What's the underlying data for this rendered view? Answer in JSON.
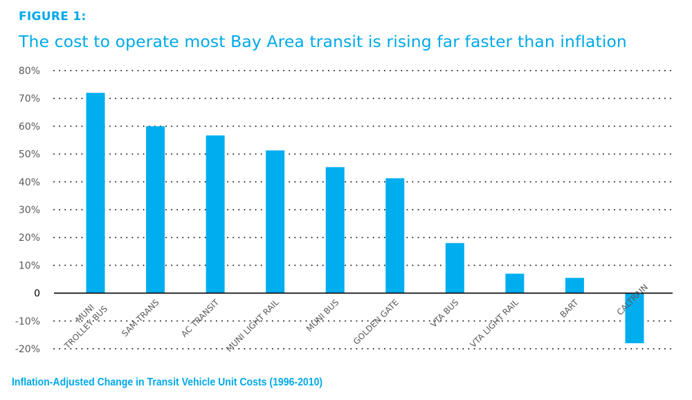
{
  "figure_label": "FIGURE 1:",
  "chart_data": {
    "type": "bar",
    "title": "The cost to operate most Bay Area transit is rising far faster than inflation",
    "caption": "Inflation-Adjusted Change in Transit Vehicle Unit Costs (1996-2010)",
    "xlabel": "",
    "ylabel": "",
    "ylim": [
      -20,
      80
    ],
    "yticks": [
      80,
      70,
      60,
      50,
      40,
      30,
      20,
      10,
      0,
      -10,
      -20
    ],
    "ytick_labels": [
      "80%",
      "70%",
      "60%",
      "50%",
      "40%",
      "30%",
      "20%",
      "10%",
      "0",
      "-10%",
      "-20%"
    ],
    "grid": true,
    "categories": [
      "MUNI TROLLEY BUS",
      "SAM TRANS",
      "AC TRANSIT",
      "MUNI LIGHT RAIL",
      "MUNI BUS",
      "GOLDEN GATE",
      "VTA BUS",
      "VTA LIGHT RAIL",
      "BART",
      "CALTRAIN"
    ],
    "category_label_lines": [
      [
        "MUNI",
        "TROLLEY BUS"
      ],
      [
        "SAM TRANS"
      ],
      [
        "AC TRANSIT"
      ],
      [
        "MUNI LIGHT RAIL"
      ],
      [
        "MUNI BUS"
      ],
      [
        "GOLDEN GATE"
      ],
      [
        "VTA BUS"
      ],
      [
        "VTA LIGHT RAIL"
      ],
      [
        "BART"
      ],
      [
        "CALTRAIN"
      ]
    ],
    "values": [
      72,
      60,
      56.7,
      51.3,
      45.3,
      41.3,
      18,
      7,
      5.5,
      -18
    ],
    "unit": "%",
    "bar_color": "#00aeef"
  }
}
